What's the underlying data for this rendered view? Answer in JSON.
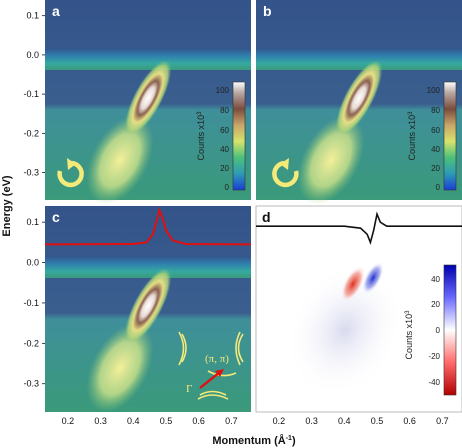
{
  "figure": {
    "panels": [
      {
        "id": "a",
        "colorbar_label": "Counts x10",
        "colorbar_exp": "3",
        "colorbar_ticks": [
          "100",
          "80",
          "60",
          "40",
          "20",
          "0"
        ],
        "arrow": "clockwise"
      },
      {
        "id": "b",
        "colorbar_label": "Counts x10",
        "colorbar_exp": "3",
        "colorbar_ticks": [
          "100",
          "80",
          "60",
          "40",
          "20",
          "0"
        ],
        "arrow": "counterclockwise"
      },
      {
        "id": "c",
        "inset_label_point": "(π, π)",
        "inset_label_gamma": "Γ"
      },
      {
        "id": "d",
        "colorbar_label": "Counts x10",
        "colorbar_exp": "3",
        "colorbar_ticks": [
          "40",
          "20",
          "0",
          "-20",
          "-40"
        ]
      }
    ],
    "y_axis_label": "Energy (eV)",
    "x_axis_label": "Momentum (Å",
    "x_axis_unit_exp": "-1",
    "x_axis_label_close": ")",
    "top_y_ticks": [
      "0.1",
      "0.0",
      "-0.1",
      "-0.2",
      "-0.3"
    ],
    "bottom_y_ticks": [
      "0.1",
      "0.0",
      "-0.1",
      "-0.2",
      "-0.3"
    ],
    "x_ticks": [
      "0.2",
      "0.3",
      "0.4",
      "0.5",
      "0.6",
      "0.7"
    ]
  },
  "chart_data": [
    {
      "type": "heatmap",
      "panel": "a",
      "x_range": [
        0.13,
        0.76
      ],
      "y_range": [
        -0.37,
        0.14
      ],
      "ylim": [
        -0.37,
        0.14
      ],
      "colorbar_range": [
        0,
        110
      ],
      "dispersion_band": {
        "k": [
          0.4,
          0.43,
          0.46,
          0.48,
          0.5
        ],
        "E": [
          -0.3,
          -0.2,
          -0.1,
          -0.05,
          0.0
        ]
      }
    },
    {
      "type": "heatmap",
      "panel": "b",
      "x_range": [
        0.13,
        0.76
      ],
      "y_range": [
        -0.37,
        0.14
      ],
      "ylim": [
        -0.37,
        0.14
      ],
      "colorbar_range": [
        0,
        110
      ],
      "dispersion_band": {
        "k": [
          0.4,
          0.43,
          0.46,
          0.48,
          0.5
        ],
        "E": [
          -0.3,
          -0.2,
          -0.1,
          -0.05,
          0.0
        ]
      }
    },
    {
      "type": "line",
      "panel": "c",
      "x": [
        0.13,
        0.4,
        0.44,
        0.46,
        0.47,
        0.48,
        0.49,
        0.5,
        0.52,
        0.56,
        0.76
      ],
      "y": [
        0.045,
        0.046,
        0.05,
        0.07,
        0.1,
        0.13,
        0.11,
        0.08,
        0.055,
        0.046,
        0.045
      ]
    },
    {
      "type": "line",
      "panel": "d",
      "x": [
        0.13,
        0.4,
        0.45,
        0.47,
        0.48,
        0.49,
        0.5,
        0.51,
        0.53,
        0.58,
        0.76
      ],
      "y": [
        0.09,
        0.09,
        0.085,
        0.07,
        0.05,
        0.08,
        0.12,
        0.1,
        0.09,
        0.09,
        0.09
      ]
    },
    {
      "type": "heatmap",
      "panel": "d",
      "colorbar_range": [
        -50,
        50
      ]
    }
  ]
}
